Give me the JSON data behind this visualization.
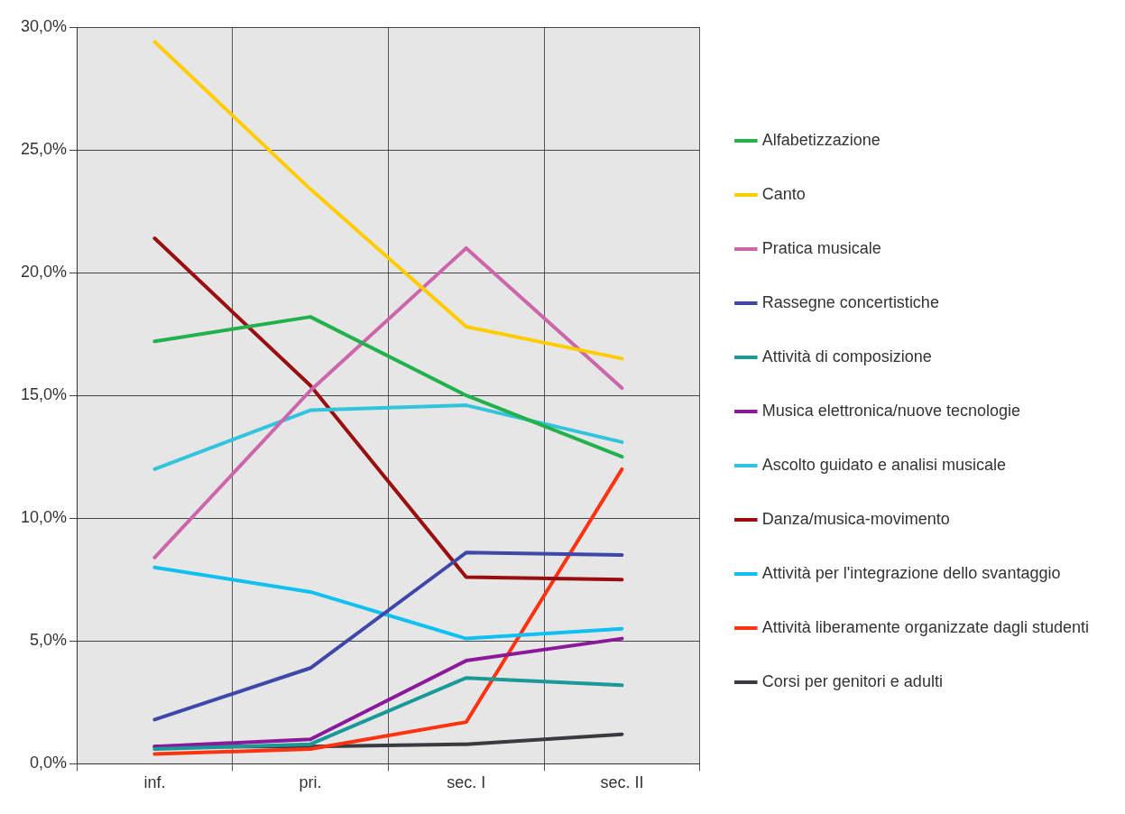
{
  "chart_data": {
    "type": "line",
    "categories": [
      "inf.",
      "pri.",
      "sec. I",
      "sec. II"
    ],
    "ylim": [
      0,
      30
    ],
    "yticks": [
      {
        "value": 0,
        "label": "0,0%"
      },
      {
        "value": 5,
        "label": "5,0%"
      },
      {
        "value": 10,
        "label": "10,0%"
      },
      {
        "value": 15,
        "label": "15,0%"
      },
      {
        "value": 20,
        "label": "20,0%"
      },
      {
        "value": 25,
        "label": "25,0%"
      },
      {
        "value": 30,
        "label": "30,0%"
      }
    ],
    "grid": true,
    "legend": "right",
    "marker": "none",
    "line_style": "solid",
    "series": [
      {
        "name": "Alfabetizzazione",
        "color": "#22b14c",
        "values": [
          17.2,
          18.2,
          15.0,
          12.5
        ]
      },
      {
        "name": "Canto",
        "color": "#ffcc00",
        "values": [
          29.4,
          23.4,
          17.8,
          16.5
        ]
      },
      {
        "name": "Pratica musicale",
        "color": "#cc66aa",
        "values": [
          8.4,
          15.2,
          21.0,
          15.3
        ]
      },
      {
        "name": "Rassegne concertistiche",
        "color": "#3f48a8",
        "values": [
          1.8,
          3.9,
          8.6,
          8.5
        ]
      },
      {
        "name": "Attività di composizione",
        "color": "#1a9999",
        "values": [
          0.6,
          0.8,
          3.5,
          3.2
        ]
      },
      {
        "name": "Musica elettronica/nuove tecnologie",
        "color": "#8b1a9b",
        "values": [
          0.7,
          1.0,
          4.2,
          5.1
        ]
      },
      {
        "name": "Ascolto guidato e analisi musicale",
        "color": "#33c4dd",
        "values": [
          12.0,
          14.4,
          14.6,
          13.1
        ]
      },
      {
        "name": "Danza/musica-movimento",
        "color": "#990f0f",
        "values": [
          21.4,
          15.4,
          7.6,
          7.5
        ]
      },
      {
        "name": "Attività per l'integrazione dello svantaggio",
        "color": "#0fc0f0",
        "values": [
          8.0,
          7.0,
          5.1,
          5.5
        ]
      },
      {
        "name": "Attività liberamente organizzate dagli studenti",
        "color": "#ff3311",
        "values": [
          0.4,
          0.6,
          1.7,
          12.0
        ]
      },
      {
        "name": "Corsi per genitori e adulti",
        "color": "#3a3a3f",
        "values": [
          0.7,
          0.7,
          0.8,
          1.2
        ]
      }
    ]
  }
}
